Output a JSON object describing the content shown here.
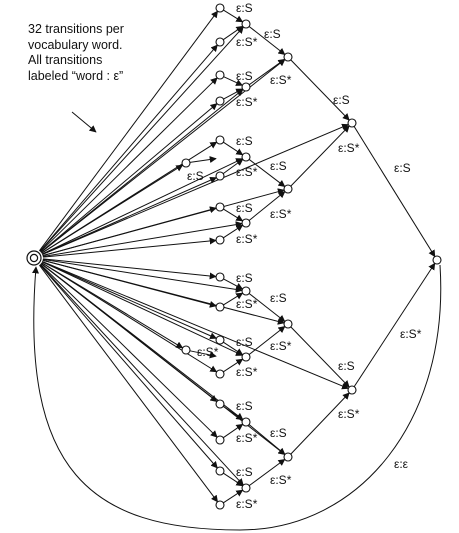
{
  "note": {
    "line1": "32 transitions per",
    "line2": "vocabulary word.",
    "line3": "All transitions",
    "line4": "labeled “word : ε”"
  },
  "labels": {
    "eps_S": "ε:S",
    "eps_S_star": "ε:S*",
    "eps_eps": "ε:ε"
  },
  "colors": {
    "stroke": "#111111",
    "background": "#ffffff"
  }
}
